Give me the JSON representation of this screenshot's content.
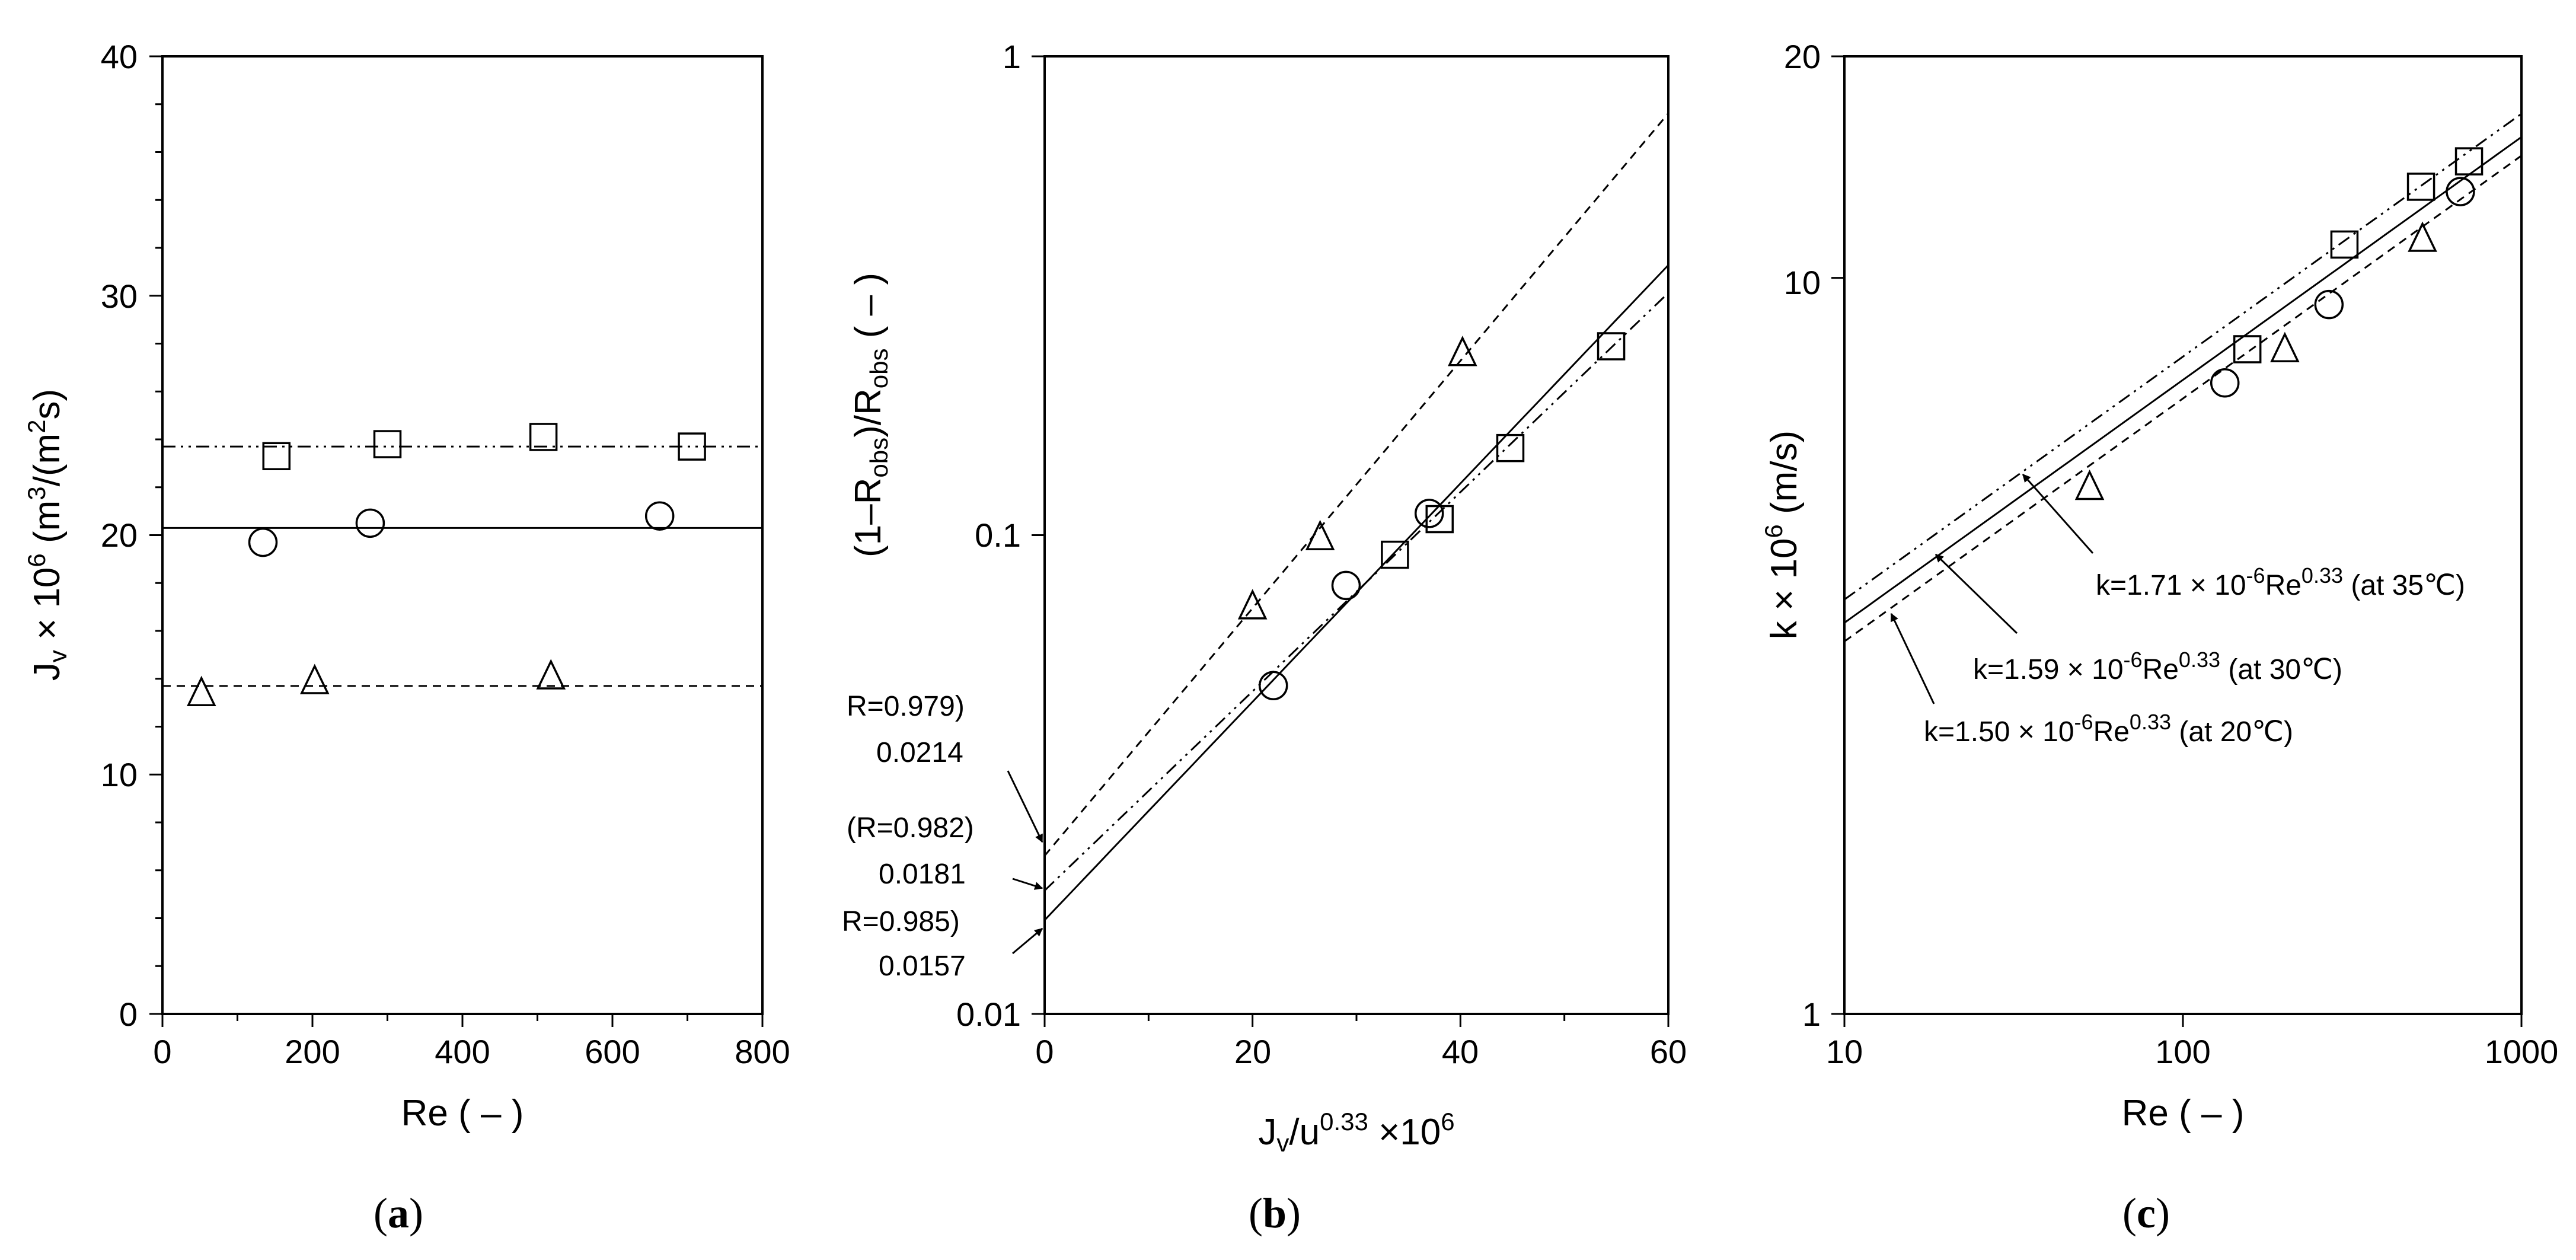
{
  "chart_data": [
    {
      "type": "scatter",
      "panel_label": "a",
      "xlabel": "Re ( – )",
      "ylabel_main": "J",
      "ylabel_sub": "v",
      "ylabel_rest": " × 10",
      "ylabel_sup": "6",
      "ylabel_units": " (m",
      "ylabel_units_sup": "3",
      "ylabel_units_mid": "/(m",
      "ylabel_units_sup2": "2",
      "ylabel_units_end": "s)",
      "xlim": [
        0,
        800
      ],
      "ylim": [
        0,
        40
      ],
      "xticks": [
        "0",
        "200",
        "400",
        "600",
        "800"
      ],
      "yticks": [
        "0",
        "10",
        "20",
        "30",
        "40"
      ],
      "series": [
        {
          "marker": "square",
          "x": [
            152,
            300,
            508,
            706
          ],
          "y": [
            23.3,
            23.8,
            24.1,
            23.7
          ],
          "fit": {
            "kind": "constant",
            "value": 23.7,
            "dash": "dashdotdot"
          }
        },
        {
          "marker": "circle",
          "x": [
            134,
            277,
            663
          ],
          "y": [
            19.7,
            20.5,
            20.8
          ],
          "fit": {
            "kind": "constant",
            "value": 20.3,
            "dash": "solid"
          }
        },
        {
          "marker": "triangle",
          "x": [
            52,
            203,
            518
          ],
          "y": [
            13.4,
            13.9,
            14.1
          ],
          "fit": {
            "kind": "constant",
            "value": 13.7,
            "dash": "dashed"
          }
        }
      ]
    },
    {
      "type": "scatter",
      "panel_label": "b",
      "xlabel_main": "J",
      "xlabel_sub": "v",
      "xlabel_mid": "/u",
      "xlabel_sup": "0.33",
      "xlabel_rest": " ×10",
      "xlabel_sup2": "6",
      "ylabel_a": "(1–R",
      "ylabel_sub": "obs",
      "ylabel_b": ")/R",
      "ylabel_sub2": "obs",
      "ylabel_c": "  ( – )",
      "xlim": [
        0,
        60
      ],
      "ylim": [
        0.01,
        1
      ],
      "yscale": "log",
      "xticks": [
        "0",
        "20",
        "40",
        "60"
      ],
      "yticks": [
        "0.01",
        "0.1",
        "1"
      ],
      "series": [
        {
          "marker": "triangle",
          "x": [
            20,
            26.5,
            40.2
          ],
          "y": [
            0.071,
            0.099,
            0.24
          ],
          "fit": {
            "kind": "exp",
            "intercept": 0.0214,
            "slope_per_unit": 0.0595,
            "dash": "dashed"
          }
        },
        {
          "marker": "circle",
          "x": [
            22,
            29,
            37
          ],
          "y": [
            0.0485,
            0.0785,
            0.111
          ],
          "fit": {
            "kind": "exp",
            "intercept": 0.0157,
            "slope_per_unit": 0.0525,
            "dash": "solid"
          }
        },
        {
          "marker": "square",
          "x": [
            33.7,
            38,
            44.8,
            54.5
          ],
          "y": [
            0.091,
            0.108,
            0.152,
            0.248
          ],
          "fit": {
            "kind": "exp",
            "intercept": 0.0181,
            "slope_per_unit": 0.0479,
            "dash": "dashdotdot"
          }
        }
      ],
      "annotations": [
        {
          "lines": [
            "R=0.979)",
            "0.0214"
          ]
        },
        {
          "lines": [
            "(R=0.982)",
            "0.0181"
          ]
        },
        {
          "lines": [
            "R=0.985)",
            "0.0157"
          ]
        }
      ]
    },
    {
      "type": "scatter",
      "panel_label": "c",
      "xlabel": "Re ( – )",
      "ylabel": "k × 10",
      "ylabel_sup": "6",
      "ylabel_rest": " (m/s)",
      "xlim": [
        10,
        1000
      ],
      "ylim": [
        1,
        20
      ],
      "xscale": "log",
      "yscale": "log",
      "xticks": [
        "10",
        "100",
        "1000"
      ],
      "yticks": [
        "1",
        "10",
        "20"
      ],
      "series": [
        {
          "marker": "square",
          "x": [
            155,
            300,
            505,
            700
          ],
          "y": [
            8.0,
            11.1,
            13.3,
            14.4
          ],
          "fit": {
            "kind": "power",
            "coef": 1.71,
            "exponent": 0.33,
            "dash": "dashdotdot"
          }
        },
        {
          "marker": "circle",
          "x": [
            133,
            270,
            660
          ],
          "y": [
            7.2,
            9.2,
            13.1
          ],
          "fit": {
            "kind": "power",
            "coef": 1.59,
            "exponent": 0.33,
            "dash": "solid"
          }
        },
        {
          "marker": "triangle",
          "x": [
            53,
            200,
            510
          ],
          "y": [
            5.2,
            8.0,
            11.3
          ],
          "fit": {
            "kind": "power",
            "coef": 1.5,
            "exponent": 0.33,
            "dash": "dashed"
          }
        }
      ],
      "annotations": [
        {
          "pre": "k=1.71 × 10",
          "sup1": "-6",
          "mid": "Re",
          "sup2": "0.33",
          "post": "  (at 35℃)"
        },
        {
          "pre": "k=1.59 × 10",
          "sup1": "-6",
          "mid": "Re",
          "sup2": "0.33",
          "post": "  (at 30℃)"
        },
        {
          "pre": "k=1.50 × 10",
          "sup1": "-6",
          "mid": "Re",
          "sup2": "0.33",
          "post": " (at 20℃)"
        }
      ]
    }
  ]
}
